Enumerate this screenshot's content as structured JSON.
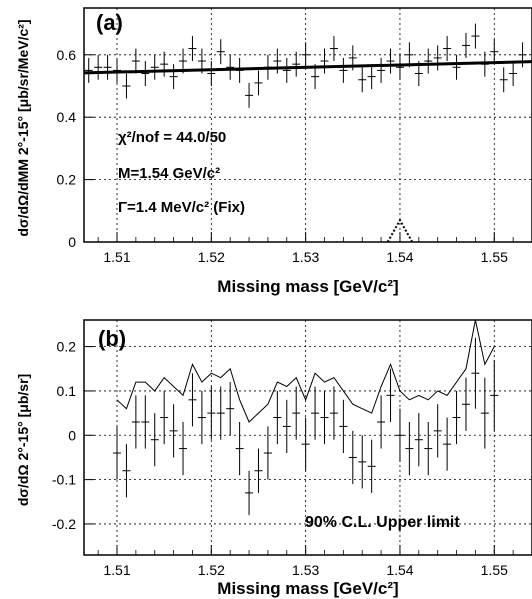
{
  "chart_data": [
    {
      "type": "scatter",
      "panel_label": "(a)",
      "xlabel": "Missing mass [GeV/c²]",
      "ylabel": "dσ/dΩ/dMM 2°-15° [μb/sr/MeV/c²]",
      "xlim": [
        1.5065,
        1.554
      ],
      "ylim": [
        0,
        0.75
      ],
      "x_ticks": [
        "1.51",
        "1.52",
        "1.53",
        "1.54",
        "1.55"
      ],
      "y_ticks": [
        "0",
        "0.2",
        "0.4",
        "0.6"
      ],
      "grid": true,
      "annotations": [
        "χ²/nof = 44.0/50",
        "M=1.54 GeV/c²",
        "Γ=1.4 MeV/c² (Fix)"
      ],
      "points": {
        "x": [
          1.507,
          1.508,
          1.509,
          1.51,
          1.511,
          1.512,
          1.513,
          1.514,
          1.515,
          1.516,
          1.517,
          1.518,
          1.519,
          1.52,
          1.521,
          1.522,
          1.523,
          1.524,
          1.525,
          1.526,
          1.527,
          1.528,
          1.529,
          1.53,
          1.531,
          1.532,
          1.533,
          1.534,
          1.535,
          1.536,
          1.537,
          1.538,
          1.539,
          1.54,
          1.541,
          1.542,
          1.543,
          1.544,
          1.545,
          1.546,
          1.547,
          1.548,
          1.549,
          1.55,
          1.551,
          1.552,
          1.553
        ],
        "y": [
          0.55,
          0.56,
          0.56,
          0.55,
          0.5,
          0.58,
          0.54,
          0.56,
          0.57,
          0.53,
          0.58,
          0.62,
          0.58,
          0.54,
          0.61,
          0.56,
          0.55,
          0.47,
          0.51,
          0.56,
          0.58,
          0.55,
          0.57,
          0.6,
          0.53,
          0.58,
          0.62,
          0.55,
          0.59,
          0.52,
          0.53,
          0.55,
          0.58,
          0.56,
          0.6,
          0.54,
          0.58,
          0.59,
          0.62,
          0.56,
          0.63,
          0.66,
          0.57,
          0.61,
          0.52,
          0.54,
          0.6
        ],
        "err": 0.04
      },
      "fit": {
        "x": [
          1.5065,
          1.554
        ],
        "y": [
          0.542,
          0.578
        ]
      },
      "peak": {
        "center": 1.54,
        "height": 0.07,
        "half_width": 0.0013
      }
    },
    {
      "type": "scatter",
      "panel_label": "(b)",
      "xlabel": "Missing mass [GeV/c²]",
      "ylabel": "dσ/dΩ 2°-15° [μb/sr]",
      "xlim": [
        1.5065,
        1.554
      ],
      "ylim": [
        -0.27,
        0.26
      ],
      "x_ticks": [
        "1.51",
        "1.52",
        "1.53",
        "1.54",
        "1.55"
      ],
      "y_ticks": [
        "-0.2",
        "-0.1",
        "0",
        "0.1",
        "0.2"
      ],
      "grid": true,
      "annotations": [
        "90% C.L. Upper limit"
      ],
      "points": {
        "x": [
          1.51,
          1.511,
          1.512,
          1.513,
          1.514,
          1.515,
          1.516,
          1.517,
          1.518,
          1.519,
          1.52,
          1.521,
          1.522,
          1.523,
          1.524,
          1.525,
          1.526,
          1.527,
          1.528,
          1.529,
          1.53,
          1.531,
          1.532,
          1.533,
          1.534,
          1.535,
          1.536,
          1.537,
          1.538,
          1.539,
          1.54,
          1.541,
          1.542,
          1.543,
          1.544,
          1.545,
          1.546,
          1.547,
          1.548,
          1.549,
          1.55
        ],
        "y": [
          -0.04,
          -0.08,
          0.03,
          0.03,
          -0.01,
          0.04,
          0.01,
          -0.03,
          0.08,
          0.04,
          0.05,
          0.05,
          0.06,
          -0.03,
          -0.13,
          -0.08,
          -0.04,
          0.04,
          0.02,
          0.05,
          -0.02,
          0.05,
          0.04,
          0.05,
          0.02,
          -0.05,
          -0.06,
          -0.07,
          0.03,
          0.09,
          0.0,
          -0.03,
          -0.01,
          -0.03,
          0.01,
          -0.02,
          0.04,
          0.07,
          0.14,
          0.05,
          0.09
        ],
        "err": [
          0.06,
          0.06,
          0.06,
          0.06,
          0.06,
          0.06,
          0.06,
          0.06,
          0.06,
          0.06,
          0.06,
          0.06,
          0.06,
          0.06,
          0.05,
          0.05,
          0.06,
          0.06,
          0.06,
          0.06,
          0.06,
          0.06,
          0.06,
          0.06,
          0.06,
          0.06,
          0.06,
          0.06,
          0.06,
          0.06,
          0.06,
          0.06,
          0.06,
          0.06,
          0.06,
          0.06,
          0.06,
          0.06,
          0.08,
          0.08,
          0.08
        ]
      },
      "upper_limit": {
        "x": [
          1.51,
          1.511,
          1.512,
          1.513,
          1.514,
          1.515,
          1.516,
          1.517,
          1.518,
          1.519,
          1.52,
          1.521,
          1.522,
          1.523,
          1.524,
          1.525,
          1.526,
          1.527,
          1.528,
          1.529,
          1.53,
          1.531,
          1.532,
          1.533,
          1.534,
          1.535,
          1.536,
          1.537,
          1.538,
          1.539,
          1.54,
          1.541,
          1.542,
          1.543,
          1.544,
          1.545,
          1.546,
          1.547,
          1.548,
          1.549,
          1.55
        ],
        "y": [
          0.08,
          0.06,
          0.12,
          0.12,
          0.1,
          0.13,
          0.11,
          0.09,
          0.16,
          0.12,
          0.14,
          0.13,
          0.15,
          0.08,
          0.03,
          0.05,
          0.07,
          0.12,
          0.11,
          0.13,
          0.08,
          0.14,
          0.12,
          0.13,
          0.1,
          0.07,
          0.06,
          0.05,
          0.11,
          0.16,
          0.1,
          0.08,
          0.09,
          0.08,
          0.1,
          0.09,
          0.12,
          0.15,
          0.26,
          0.16,
          0.2
        ]
      }
    }
  ]
}
